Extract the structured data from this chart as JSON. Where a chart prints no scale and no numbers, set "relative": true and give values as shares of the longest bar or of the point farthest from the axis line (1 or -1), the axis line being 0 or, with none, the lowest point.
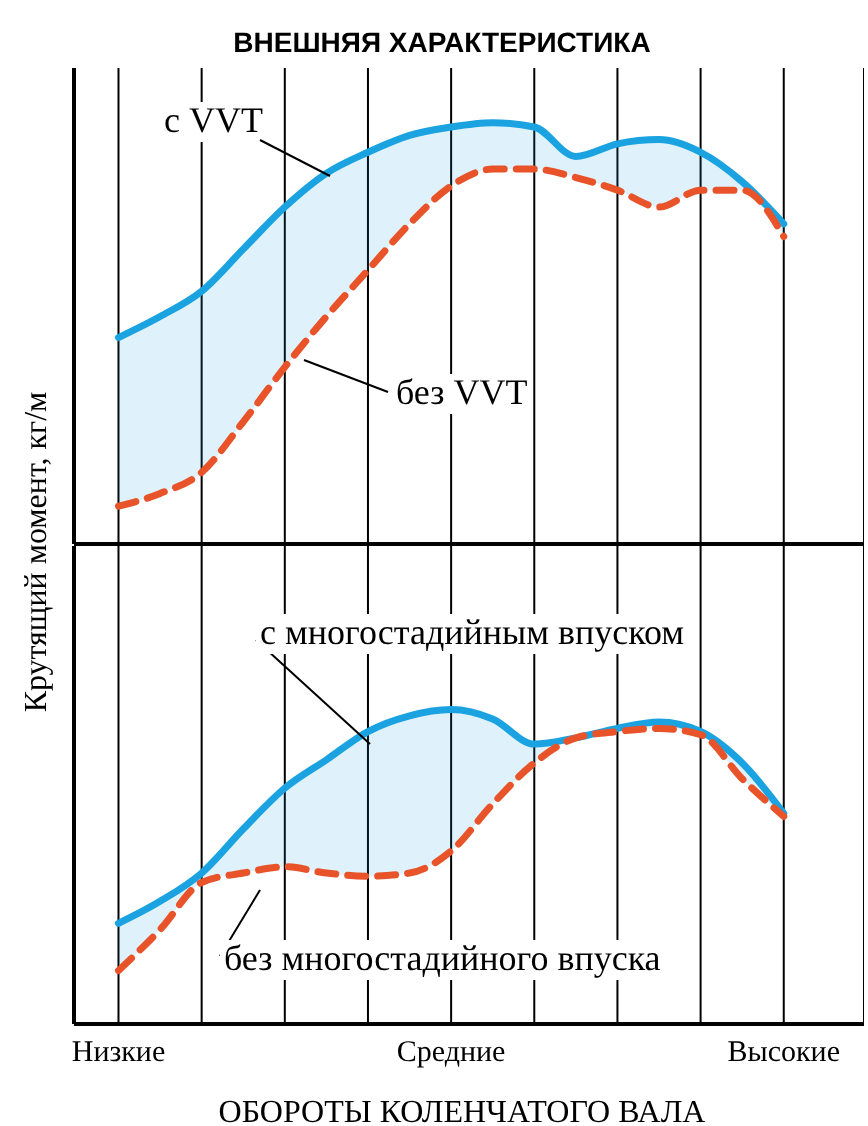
{
  "chart_data": [
    {
      "type": "line",
      "title": "ВНЕШНЯЯ ХАРАКТЕРИСТИКА",
      "ylabel": "Крутящий момент, кг/м",
      "relative": true,
      "legend": false,
      "grid": "x",
      "tick_labels": false,
      "marker": "none",
      "categories": [
        null,
        null,
        null,
        null,
        null,
        null,
        null,
        null,
        null,
        null,
        null,
        null,
        null,
        null,
        null,
        null,
        null
      ],
      "series": [
        {
          "name": "с VVT",
          "color": "#1aa3e0",
          "line_style": "solid",
          "values": [
            0.49,
            0.54,
            0.6,
            0.7,
            0.8,
            0.88,
            0.93,
            0.97,
            0.99,
            1,
            0.99,
            0.92,
            0.95,
            0.96,
            0.93,
            0.86,
            0.76
          ],
          "lower": [
            0.09,
            0.12,
            0.17,
            0.29,
            0.42,
            0.54,
            0.65,
            0.76,
            0.85,
            0.89,
            0.89,
            0.87,
            0.84,
            0.8,
            0.84,
            0.84,
            0.73
          ],
          "upper": [
            0.49,
            0.54,
            0.6,
            0.7,
            0.8,
            0.88,
            0.93,
            0.97,
            0.99,
            1,
            0.99,
            0.92,
            0.95,
            0.96,
            0.93,
            0.86,
            0.76
          ]
        },
        {
          "name": "без VVT",
          "color": "#e8532a",
          "line_style": "dashed",
          "values": [
            0.09,
            0.12,
            0.17,
            0.29,
            0.42,
            0.54,
            0.65,
            0.76,
            0.85,
            0.89,
            0.89,
            0.87,
            0.84,
            0.8,
            0.84,
            0.84,
            0.73
          ]
        }
      ]
    },
    {
      "type": "line",
      "xlabel": "ОБОРОТЫ КОЛЕНЧАТОГО ВАЛА",
      "relative": true,
      "legend": false,
      "grid": "x",
      "tick_labels": "x",
      "marker": "none",
      "categories": [
        "Низкие",
        null,
        null,
        null,
        null,
        null,
        null,
        null,
        "Средние",
        null,
        null,
        null,
        null,
        null,
        null,
        null,
        "Высокие"
      ],
      "series": [
        {
          "name": "с многостадийным впуском",
          "color": "#1aa3e0",
          "line_style": "solid",
          "values": [
            0.32,
            0.39,
            0.48,
            0.62,
            0.75,
            0.84,
            0.93,
            0.98,
            1,
            0.97,
            0.89,
            0.91,
            0.94,
            0.96,
            0.93,
            0.83,
            0.67
          ],
          "lower": [
            0.17,
            0.3,
            0.45,
            0.48,
            0.5,
            0.48,
            0.47,
            0.48,
            0.55,
            0.7,
            0.83,
            0.91,
            0.93,
            0.94,
            0.92,
            0.78,
            0.66
          ],
          "upper": [
            0.32,
            0.39,
            0.48,
            0.62,
            0.75,
            0.84,
            0.93,
            0.98,
            1,
            0.97,
            0.89,
            0.91,
            0.94,
            0.96,
            0.93,
            0.83,
            0.67
          ]
        },
        {
          "name": "без многостадийного впуска",
          "color": "#e8532a",
          "line_style": "dashed",
          "values": [
            0.17,
            0.3,
            0.45,
            0.48,
            0.5,
            0.48,
            0.47,
            0.48,
            0.55,
            0.7,
            0.83,
            0.91,
            0.93,
            0.94,
            0.92,
            0.78,
            0.66
          ]
        }
      ]
    }
  ]
}
